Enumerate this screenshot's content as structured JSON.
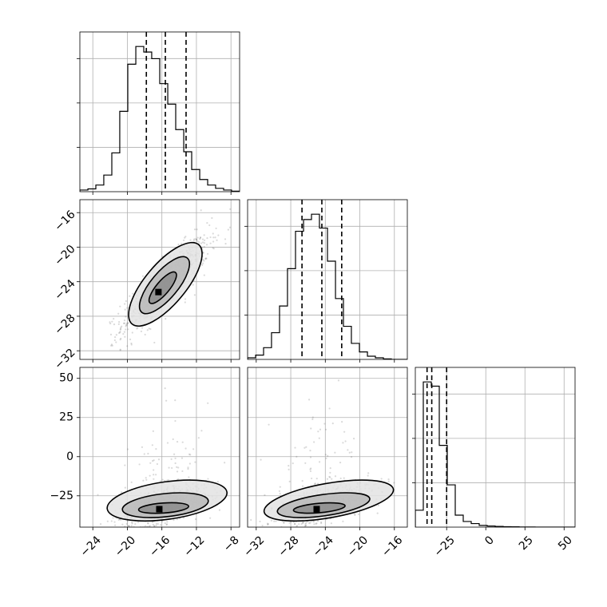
{
  "chart_data": {
    "type": "corner",
    "title": "",
    "grid": true,
    "parameters": [
      "",
      "",
      ""
    ],
    "quantile_levels": [
      0.16,
      0.5,
      0.84
    ],
    "ranges": [
      [
        -25.5,
        -7
      ],
      [
        -33,
        -14.5
      ],
      [
        -45,
        57
      ]
    ],
    "ticks": [
      {
        "values": [
          -24,
          -20,
          -16,
          -12,
          -8
        ],
        "labels": [
          "−24",
          "−20",
          "−16",
          "−12",
          "−8"
        ]
      },
      {
        "values": [
          -32,
          -28,
          -24,
          -20,
          -16
        ],
        "labels": [
          "−32",
          "−28",
          "−24",
          "−20",
          "−16"
        ]
      },
      {
        "values": [
          -25,
          0,
          25,
          50
        ],
        "labels": [
          "−25",
          "0",
          "25",
          "50"
        ]
      }
    ],
    "quantiles": [
      [
        -17.8,
        -15.6,
        -13.2
      ],
      [
        -26.7,
        -24.4,
        -22.1
      ],
      [
        -37.5,
        -34.5,
        -25.0
      ]
    ],
    "histograms": [
      {
        "edges": [
          -25.5,
          -24.57,
          -23.65,
          -22.73,
          -21.8,
          -20.88,
          -19.95,
          -19.02,
          -18.1,
          -17.18,
          -16.25,
          -15.32,
          -14.4,
          -13.47,
          -12.55,
          -11.62,
          -10.7,
          -9.78,
          -8.85,
          -7.93,
          -7.0
        ],
        "counts": [
          3,
          5,
          12,
          30,
          70,
          145,
          230,
          262,
          252,
          240,
          195,
          158,
          112,
          72,
          40,
          22,
          12,
          6,
          3,
          1
        ]
      },
      {
        "edges": [
          -33.0,
          -32.07,
          -31.15,
          -30.23,
          -29.3,
          -28.38,
          -27.45,
          -26.52,
          -25.6,
          -24.68,
          -23.75,
          -22.82,
          -21.9,
          -20.98,
          -20.05,
          -19.12,
          -18.2,
          -17.27,
          -16.35,
          -15.43,
          -14.5
        ],
        "counts": [
          3,
          8,
          22,
          50,
          100,
          170,
          240,
          262,
          272,
          246,
          184,
          114,
          62,
          30,
          14,
          6,
          3,
          1,
          0,
          0
        ]
      },
      {
        "edges": [
          -45.0,
          -39.9,
          -34.8,
          -29.7,
          -24.6,
          -19.5,
          -14.4,
          -9.3,
          -4.2,
          0.9,
          6.0,
          11.1,
          16.2,
          21.3,
          26.4,
          31.5,
          36.6,
          41.7,
          46.8,
          51.9,
          57.0
        ],
        "counts": [
          120,
          1030,
          1000,
          580,
          300,
          85,
          40,
          25,
          12,
          8,
          5,
          3,
          2,
          1,
          1,
          0,
          0,
          0,
          0,
          0
        ]
      }
    ],
    "pairs": [
      {
        "x_param": 0,
        "y_param": 1,
        "mean": [
          -15.6,
          -24.4
        ],
        "sd": [
          2.5,
          2.7
        ],
        "rho": 0.85,
        "peak": [
          -16.4,
          -25.2
        ],
        "contours": [
          {
            "level": 0.39,
            "center": [
              -15.9,
              -24.7
            ],
            "semi_axes": [
              2.3,
              0.75
            ],
            "angle_deg": 50
          },
          {
            "level": 0.86,
            "center": [
              -15.7,
              -24.4
            ],
            "semi_axes": [
              4.1,
              1.55
            ],
            "angle_deg": 50
          },
          {
            "level": 0.99,
            "center": [
              -15.6,
              -24.3
            ],
            "semi_axes": [
              6.0,
              2.35
            ],
            "angle_deg": 50
          }
        ]
      },
      {
        "x_param": 0,
        "y_param": 2,
        "mean": [
          -15.6,
          -31.0
        ],
        "sd": [
          2.5,
          6.5
        ],
        "rho": 0.55,
        "peak": [
          -16.3,
          -33.5
        ],
        "contours": [
          {
            "level": 0.39,
            "center": [
              -15.8,
              -32.8
            ],
            "semi_axes": [
              2.9,
              3.2
            ],
            "angle_deg": 4
          },
          {
            "level": 0.86,
            "center": [
              -15.6,
              -31.0
            ],
            "semi_axes": [
              5.0,
              7.4
            ],
            "angle_deg": 6
          },
          {
            "level": 0.99,
            "center": [
              -15.4,
              -28.0
            ],
            "semi_axes": [
              7.0,
              12.0
            ],
            "angle_deg": 8
          }
        ]
      },
      {
        "x_param": 1,
        "y_param": 2,
        "mean": [
          -24.4,
          -31.0
        ],
        "sd": [
          2.7,
          6.5
        ],
        "rho": 0.65,
        "peak": [
          -25.0,
          -33.5
        ],
        "contours": [
          {
            "level": 0.39,
            "center": [
              -24.7,
              -32.8
            ],
            "semi_axes": [
              3.0,
              3.0
            ],
            "angle_deg": 5
          },
          {
            "level": 0.86,
            "center": [
              -24.2,
              -31.0
            ],
            "semi_axes": [
              5.4,
              6.8
            ],
            "angle_deg": 8
          },
          {
            "level": 0.99,
            "center": [
              -23.6,
              -28.0
            ],
            "semi_axes": [
              7.6,
              11.0
            ],
            "angle_deg": 10
          }
        ]
      }
    ]
  }
}
